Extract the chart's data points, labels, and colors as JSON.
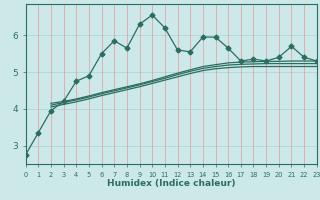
{
  "xlabel": "Humidex (Indice chaleur)",
  "background_color": "#cce8e8",
  "grid_color_v": "#e89898",
  "grid_color_h": "#a8d4d4",
  "line_color": "#2a6e62",
  "x_data": [
    0,
    1,
    2,
    3,
    4,
    5,
    6,
    7,
    8,
    9,
    10,
    11,
    12,
    13,
    14,
    15,
    16,
    17,
    18,
    19,
    20,
    21,
    22,
    23
  ],
  "ylim": [
    2.5,
    6.85
  ],
  "xlim": [
    0,
    23
  ],
  "yticks": [
    3,
    4,
    5,
    6
  ],
  "series_jagged": [
    2.75,
    3.35,
    3.95,
    4.2,
    4.75,
    4.9,
    5.5,
    5.85,
    5.65,
    6.3,
    6.55,
    6.2,
    5.6,
    5.55,
    5.95,
    5.95,
    5.65,
    5.3,
    5.35,
    5.3,
    5.4,
    5.7,
    5.4,
    5.3
  ],
  "series_smooth1": [
    null,
    null,
    4.15,
    4.2,
    4.27,
    4.35,
    4.44,
    4.52,
    4.6,
    4.68,
    4.77,
    4.87,
    4.97,
    5.06,
    5.15,
    5.2,
    5.25,
    5.27,
    5.28,
    5.29,
    5.29,
    5.3,
    5.3,
    5.3
  ],
  "series_smooth2": [
    null,
    null,
    4.1,
    4.17,
    4.24,
    4.32,
    4.41,
    4.49,
    4.57,
    4.65,
    4.74,
    4.83,
    4.93,
    5.02,
    5.1,
    5.15,
    5.19,
    5.21,
    5.22,
    5.23,
    5.23,
    5.23,
    5.23,
    5.23
  ],
  "series_smooth3": [
    null,
    null,
    4.05,
    4.12,
    4.19,
    4.27,
    4.36,
    4.44,
    4.52,
    4.6,
    4.69,
    4.78,
    4.87,
    4.96,
    5.04,
    5.09,
    5.12,
    5.14,
    5.15,
    5.15,
    5.15,
    5.15,
    5.15,
    5.15
  ]
}
